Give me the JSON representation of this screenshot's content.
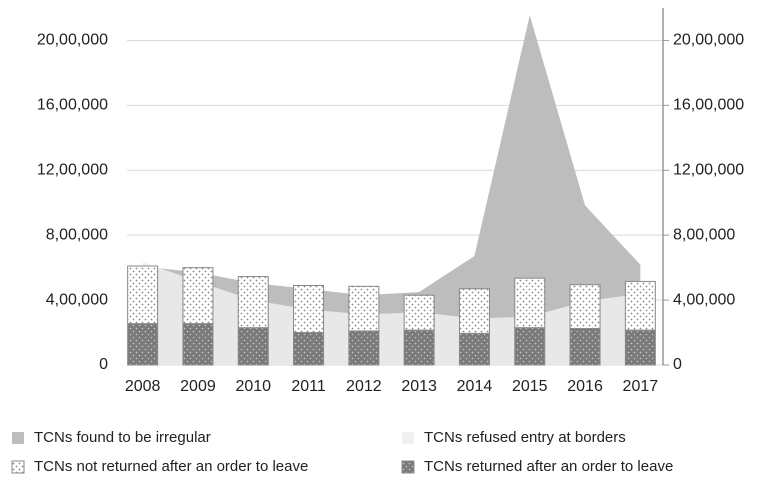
{
  "chart_data": {
    "type": "combo",
    "categories": [
      "2008",
      "2009",
      "2010",
      "2011",
      "2012",
      "2013",
      "2014",
      "2015",
      "2016",
      "2017"
    ],
    "series": [
      {
        "name": "TCNs found to be irregular",
        "type": "area",
        "color": "#bdbdbd",
        "values": [
          608000,
          570000,
          505000,
          468000,
          430000,
          450000,
          672000,
          2155000,
          984000,
          618000
        ]
      },
      {
        "name": "TCNs refused entry at borders",
        "type": "area",
        "color": "#f0f0f0",
        "values": [
          635000,
          514000,
          399000,
          343000,
          311000,
          326000,
          287000,
          298000,
          392000,
          440000
        ]
      },
      {
        "name": "TCNs not returned after an order to leave",
        "type": "bar",
        "color": "#ffffff",
        "values": [
          355000,
          345000,
          315000,
          290000,
          275000,
          215000,
          275000,
          305000,
          270000,
          300000
        ]
      },
      {
        "name": "TCNs returned after an order to leave",
        "type": "bar",
        "color": "#7a7a7a",
        "values": [
          255000,
          255000,
          230000,
          200000,
          210000,
          215000,
          195000,
          230000,
          225000,
          215000
        ]
      }
    ],
    "ylim": [
      0,
      2200000
    ],
    "yticks": [
      0,
      {
        "value": 400000,
        "label": "4,00,000"
      },
      {
        "value": 800000,
        "label": "8,00,000"
      },
      {
        "value": 1200000,
        "label": "12,00,000"
      },
      {
        "value": 1600000,
        "label": "16,00,000"
      },
      {
        "value": 2000000,
        "label": "20,00,000"
      }
    ],
    "y2lim": [
      0,
      2200000
    ],
    "y2ticks": [
      0,
      {
        "value": 400000,
        "label": "4,00,000"
      },
      {
        "value": 800000,
        "label": "8,00,000"
      },
      {
        "value": 1200000,
        "label": "12,00,000"
      },
      {
        "value": 1600000,
        "label": "16,00,000"
      },
      {
        "value": 2000000,
        "label": "20,00,000"
      }
    ],
    "grid": true
  }
}
